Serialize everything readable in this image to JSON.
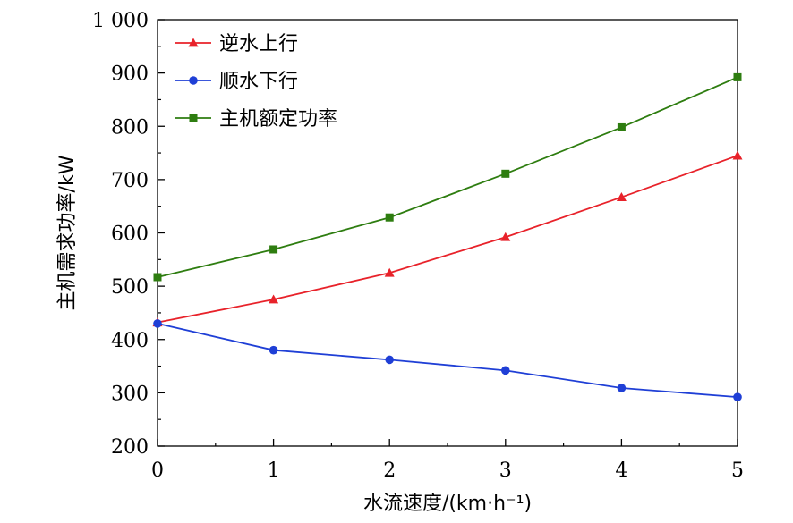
{
  "chart_data": {
    "type": "line",
    "xlabel": "水流速度/(km·h⁻¹)",
    "ylabel": "主机需求功率/kW",
    "xlim": [
      0,
      5
    ],
    "ylim": [
      200,
      1000
    ],
    "x_ticks": [
      0,
      1,
      2,
      3,
      4,
      5
    ],
    "x_tick_labels": [
      "0",
      "1",
      "2",
      "3",
      "4",
      "5"
    ],
    "y_ticks": [
      200,
      300,
      400,
      500,
      600,
      700,
      800,
      900,
      1000
    ],
    "y_tick_labels": [
      "200",
      "300",
      "400",
      "500",
      "600",
      "700",
      "800",
      "900",
      "1 000"
    ],
    "grid": false,
    "legend_position": "top-left",
    "x": [
      0,
      1,
      2,
      3,
      4,
      5
    ],
    "series": [
      {
        "name": "逆水上行",
        "values": [
          432,
          475,
          525,
          592,
          667,
          745
        ],
        "color": "#e8222a",
        "marker": "triangle"
      },
      {
        "name": "顺水下行",
        "values": [
          430,
          380,
          362,
          342,
          309,
          292
        ],
        "color": "#1f3fd6",
        "marker": "circle"
      },
      {
        "name": "主机额定功率",
        "values": [
          517,
          569,
          629,
          711,
          798,
          892
        ],
        "color": "#2e7d10",
        "marker": "square"
      }
    ]
  }
}
